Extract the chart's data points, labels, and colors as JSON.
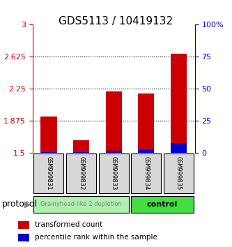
{
  "title": "GDS5113 / 10419132",
  "samples": [
    "GSM999831",
    "GSM999832",
    "GSM999833",
    "GSM999834",
    "GSM999835"
  ],
  "red_values": [
    1.93,
    1.65,
    2.22,
    2.2,
    2.66
  ],
  "blue_values": [
    0.01,
    0.01,
    0.02,
    0.03,
    0.08
  ],
  "ymin": 1.5,
  "ymax": 3.0,
  "yticks": [
    1.5,
    1.875,
    2.25,
    2.625,
    3.0
  ],
  "ytick_labels": [
    "1.5",
    "1.875",
    "2.25",
    "2.625",
    "3"
  ],
  "right_yticks": [
    0,
    25,
    50,
    75,
    100
  ],
  "right_ytick_labels": [
    "0",
    "25",
    "50",
    "75",
    "100%"
  ],
  "red_color": "#cc0000",
  "blue_color": "#0000cc",
  "bar_width": 0.5,
  "group1_samples": [
    0,
    1,
    2
  ],
  "group2_samples": [
    3,
    4
  ],
  "group1_label": "Grainyhead-like 2 depletion",
  "group2_label": "control",
  "group1_color": "#b0f0b0",
  "group2_color": "#44dd44",
  "protocol_label": "protocol",
  "legend_red": "transformed count",
  "legend_blue": "percentile rank within the sample",
  "title_fontsize": 11,
  "tick_fontsize": 8,
  "label_fontsize": 8,
  "bg_color": "#d8d8d8"
}
